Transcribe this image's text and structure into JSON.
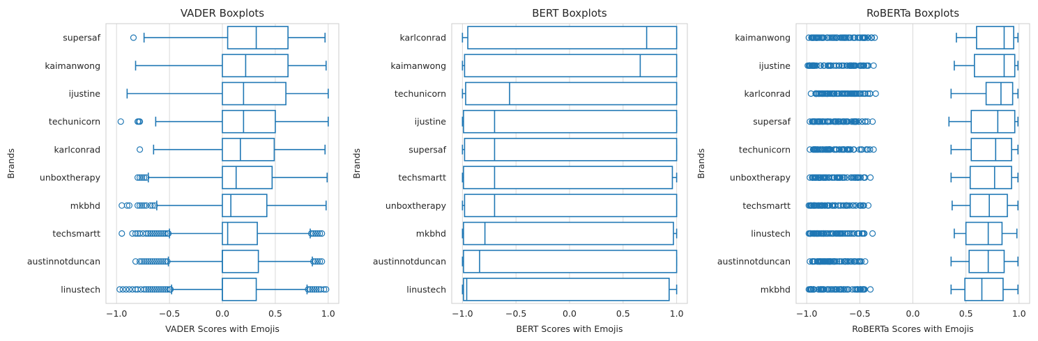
{
  "chart_data": [
    {
      "type": "boxplot",
      "title": "VADER Boxplots",
      "xlabel": "VADER Scores with Emojis",
      "ylabel": "Brands",
      "xlim": [
        -1.1,
        1.1
      ],
      "xticks": [
        -1.0,
        -0.5,
        0.0,
        0.5,
        1.0
      ],
      "xtick_labels": [
        "−1.0",
        "−0.5",
        "0.0",
        "0.5",
        "1.0"
      ],
      "grid": "vertical",
      "color": "#1f77b4",
      "boxes": [
        {
          "category": "supersaf",
          "q1": 0.05,
          "median": 0.32,
          "q3": 0.62,
          "whisker_low": -0.74,
          "whisker_high": 0.97,
          "outliers": [
            -0.84
          ]
        },
        {
          "category": "kaimanwong",
          "q1": 0.0,
          "median": 0.22,
          "q3": 0.62,
          "whisker_low": -0.82,
          "whisker_high": 0.98,
          "outliers": []
        },
        {
          "category": "ijustine",
          "q1": 0.0,
          "median": 0.2,
          "q3": 0.6,
          "whisker_low": -0.9,
          "whisker_high": 1.0,
          "outliers": []
        },
        {
          "category": "techunicorn",
          "q1": 0.0,
          "median": 0.2,
          "q3": 0.5,
          "whisker_low": -0.63,
          "whisker_high": 1.0,
          "outliers": [
            -0.96,
            -0.8,
            -0.79,
            -0.78
          ]
        },
        {
          "category": "karlconrad",
          "q1": 0.0,
          "median": 0.17,
          "q3": 0.49,
          "whisker_low": -0.65,
          "whisker_high": 0.97,
          "outliers": [
            -0.78
          ]
        },
        {
          "category": "unboxtherapy",
          "q1": 0.0,
          "median": 0.13,
          "q3": 0.47,
          "whisker_low": -0.7,
          "whisker_high": 0.99,
          "outliers": [
            -0.8,
            -0.78,
            -0.76,
            -0.74,
            -0.72
          ]
        },
        {
          "category": "mkbhd",
          "q1": 0.0,
          "median": 0.08,
          "q3": 0.42,
          "whisker_low": -0.62,
          "whisker_high": 0.98,
          "outliers": [
            -0.95,
            -0.9,
            -0.88,
            -0.8,
            -0.78,
            -0.76,
            -0.74,
            -0.72,
            -0.68,
            -0.66,
            -0.64
          ]
        },
        {
          "category": "techsmartt",
          "q1": 0.0,
          "median": 0.05,
          "q3": 0.33,
          "whisker_low": -0.5,
          "whisker_high": 0.83,
          "outliers": [
            -0.95,
            -0.85,
            -0.82,
            -0.8,
            -0.78,
            -0.75,
            -0.72,
            -0.7,
            -0.68,
            -0.66,
            -0.64,
            -0.62,
            -0.6,
            -0.58,
            -0.56,
            -0.54,
            -0.52,
            -0.51,
            0.84,
            0.86,
            0.88,
            0.9,
            0.92,
            0.94
          ]
        },
        {
          "category": "austinnotduncan",
          "q1": 0.0,
          "median": 0.0,
          "q3": 0.34,
          "whisker_low": -0.51,
          "whisker_high": 0.85,
          "outliers": [
            -0.82,
            -0.78,
            -0.76,
            -0.74,
            -0.72,
            -0.7,
            -0.68,
            -0.66,
            -0.64,
            -0.62,
            -0.6,
            -0.58,
            -0.56,
            -0.54,
            -0.52,
            0.86,
            0.88,
            0.9,
            0.92,
            0.94
          ]
        },
        {
          "category": "linustech",
          "q1": 0.0,
          "median": 0.0,
          "q3": 0.32,
          "whisker_low": -0.48,
          "whisker_high": 0.8,
          "outliers": [
            -0.97,
            -0.94,
            -0.91,
            -0.88,
            -0.85,
            -0.82,
            -0.8,
            -0.77,
            -0.74,
            -0.72,
            -0.7,
            -0.68,
            -0.66,
            -0.64,
            -0.62,
            -0.6,
            -0.58,
            -0.56,
            -0.54,
            -0.52,
            -0.5,
            -0.49,
            0.81,
            0.83,
            0.85,
            0.87,
            0.89,
            0.91,
            0.93,
            0.96,
            0.98
          ]
        }
      ]
    },
    {
      "type": "boxplot",
      "title": "BERT Boxplots",
      "xlabel": "BERT Scores with Emojis",
      "ylabel": "Brands",
      "xlim": [
        -1.1,
        1.1
      ],
      "xticks": [
        -1.0,
        -0.5,
        0.0,
        0.5,
        1.0
      ],
      "xtick_labels": [
        "−1.0",
        "−0.5",
        "0.0",
        "0.5",
        "1.0"
      ],
      "grid": "vertical",
      "color": "#1f77b4",
      "boxes": [
        {
          "category": "karlconrad",
          "q1": -0.95,
          "median": 0.72,
          "q3": 1.0,
          "whisker_low": -1.0,
          "whisker_high": 1.0,
          "outliers": []
        },
        {
          "category": "kaimanwong",
          "q1": -0.98,
          "median": 0.66,
          "q3": 1.0,
          "whisker_low": -1.0,
          "whisker_high": 1.0,
          "outliers": []
        },
        {
          "category": "techunicorn",
          "q1": -0.97,
          "median": -0.56,
          "q3": 1.0,
          "whisker_low": -1.0,
          "whisker_high": 1.0,
          "outliers": []
        },
        {
          "category": "ijustine",
          "q1": -0.99,
          "median": -0.7,
          "q3": 1.0,
          "whisker_low": -1.0,
          "whisker_high": 1.0,
          "outliers": []
        },
        {
          "category": "supersaf",
          "q1": -0.98,
          "median": -0.7,
          "q3": 1.0,
          "whisker_low": -1.0,
          "whisker_high": 1.0,
          "outliers": []
        },
        {
          "category": "techsmartt",
          "q1": -0.99,
          "median": -0.7,
          "q3": 0.96,
          "whisker_low": -1.0,
          "whisker_high": 1.0,
          "outliers": []
        },
        {
          "category": "unboxtherapy",
          "q1": -0.98,
          "median": -0.7,
          "q3": 1.0,
          "whisker_low": -1.0,
          "whisker_high": 1.0,
          "outliers": []
        },
        {
          "category": "mkbhd",
          "q1": -0.99,
          "median": -0.79,
          "q3": 0.97,
          "whisker_low": -1.0,
          "whisker_high": 1.0,
          "outliers": []
        },
        {
          "category": "austinnotduncan",
          "q1": -0.99,
          "median": -0.84,
          "q3": 1.0,
          "whisker_low": -1.0,
          "whisker_high": 1.0,
          "outliers": []
        },
        {
          "category": "linustech",
          "q1": -0.99,
          "median": -0.96,
          "q3": 0.93,
          "whisker_low": -1.0,
          "whisker_high": 1.0,
          "outliers": []
        }
      ]
    },
    {
      "type": "boxplot",
      "title": "RoBERTa Boxplots",
      "xlabel": "RoBERTa Scores with Emojis",
      "ylabel": "Brands",
      "xlim": [
        -1.1,
        1.1
      ],
      "xticks": [
        -1.0,
        -0.5,
        0.0,
        0.5,
        1.0
      ],
      "xtick_labels": [
        "−1.0",
        "−0.5",
        "0.0",
        "0.5",
        "1.0"
      ],
      "grid": "vertical",
      "color": "#1f77b4",
      "boxes": [
        {
          "category": "kaimanwong",
          "q1": 0.6,
          "median": 0.86,
          "q3": 0.95,
          "whisker_low": 0.41,
          "whisker_high": 0.99,
          "outliers": [
            -0.98,
            -0.36
          ],
          "outlier_band": [
            -0.96,
            -0.38
          ]
        },
        {
          "category": "ijustine",
          "q1": 0.58,
          "median": 0.86,
          "q3": 0.96,
          "whisker_low": 0.39,
          "whisker_high": 0.99,
          "outliers": [
            -0.99,
            -0.37
          ],
          "outlier_band": [
            -0.98,
            -0.4
          ]
        },
        {
          "category": "karlconrad",
          "q1": 0.69,
          "median": 0.83,
          "q3": 0.94,
          "whisker_low": 0.36,
          "whisker_high": 0.99,
          "outliers": [
            -0.96,
            -0.35
          ],
          "outlier_band": [
            -0.92,
            -0.4
          ]
        },
        {
          "category": "supersaf",
          "q1": 0.55,
          "median": 0.8,
          "q3": 0.96,
          "whisker_low": 0.34,
          "whisker_high": 0.99,
          "outliers": [
            -0.97,
            -0.38
          ],
          "outlier_band": [
            -0.95,
            -0.41
          ]
        },
        {
          "category": "techunicorn",
          "q1": 0.55,
          "median": 0.78,
          "q3": 0.93,
          "whisker_low": 0.36,
          "whisker_high": 0.99,
          "outliers": [
            -0.97,
            -0.37
          ],
          "outlier_band": [
            -0.94,
            -0.4
          ]
        },
        {
          "category": "unboxtherapy",
          "q1": 0.54,
          "median": 0.77,
          "q3": 0.93,
          "whisker_low": 0.36,
          "whisker_high": 0.99,
          "outliers": [
            -0.97,
            -0.4
          ],
          "outlier_band": [
            -0.95,
            -0.45
          ]
        },
        {
          "category": "techsmartt",
          "q1": 0.54,
          "median": 0.72,
          "q3": 0.89,
          "whisker_low": 0.37,
          "whisker_high": 0.99,
          "outliers": [
            -0.98,
            -0.42
          ],
          "outlier_band": [
            -0.97,
            -0.46
          ]
        },
        {
          "category": "linustech",
          "q1": 0.5,
          "median": 0.71,
          "q3": 0.84,
          "whisker_low": 0.39,
          "whisker_high": 0.98,
          "outliers": [
            -0.98,
            -0.38
          ],
          "outlier_band": [
            -0.97,
            -0.45
          ]
        },
        {
          "category": "austinnotduncan",
          "q1": 0.53,
          "median": 0.71,
          "q3": 0.86,
          "whisker_low": 0.36,
          "whisker_high": 0.99,
          "outliers": [
            -0.97,
            -0.45
          ],
          "outlier_band": [
            -0.95,
            -0.47
          ]
        },
        {
          "category": "mkbhd",
          "q1": 0.49,
          "median": 0.65,
          "q3": 0.85,
          "whisker_low": 0.36,
          "whisker_high": 0.99,
          "outliers": [
            -0.98,
            -0.4
          ],
          "outlier_band": [
            -0.97,
            -0.45
          ]
        }
      ]
    }
  ]
}
